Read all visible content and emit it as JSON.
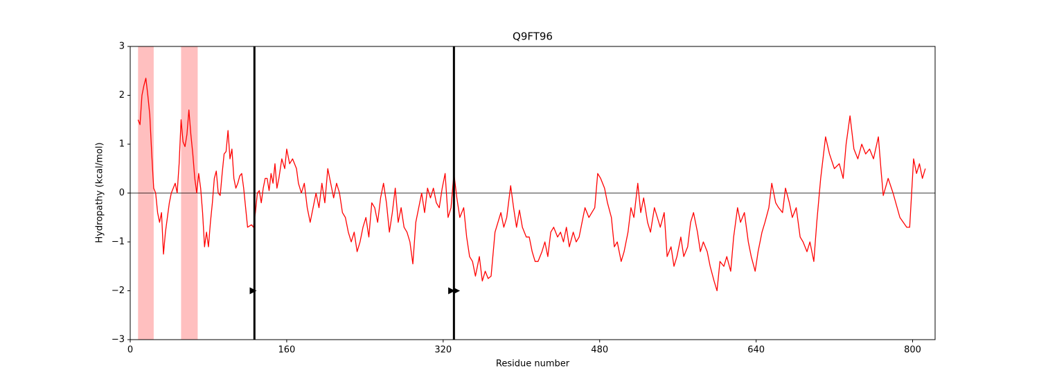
{
  "chart_data": {
    "type": "line",
    "title": "Q9FT96",
    "xlabel": "Residue number",
    "ylabel": "Hydropathy (kcal/mol)",
    "xlim": [
      0,
      823
    ],
    "ylim": [
      -3,
      3
    ],
    "xticks": [
      0,
      160,
      320,
      480,
      640,
      800
    ],
    "yticks": [
      {
        "value": -3,
        "label": "−3"
      },
      {
        "value": -2,
        "label": "−2"
      },
      {
        "value": -1,
        "label": "−1"
      },
      0,
      1,
      2,
      3
    ],
    "hline": 0,
    "spans": [
      [
        8,
        24
      ],
      [
        52,
        69
      ]
    ],
    "span_color": "#ffbfbf",
    "vlines": [
      127,
      331
    ],
    "markers": {
      "x": [
        125,
        328,
        333
      ],
      "y": [
        -2,
        -2,
        -2
      ]
    },
    "x": [
      8,
      10,
      12,
      14,
      16,
      18,
      20,
      22,
      24,
      26,
      28,
      30,
      32,
      34,
      36,
      38,
      40,
      42,
      44,
      46,
      48,
      50,
      52,
      54,
      56,
      58,
      60,
      62,
      64,
      66,
      68,
      70,
      72,
      74,
      76,
      78,
      80,
      82,
      84,
      86,
      88,
      90,
      92,
      94,
      96,
      98,
      100,
      102,
      104,
      106,
      108,
      110,
      112,
      114,
      116,
      118,
      120,
      124,
      126,
      128,
      130,
      132,
      134,
      136,
      138,
      140,
      142,
      144,
      146,
      148,
      150,
      152,
      155,
      158,
      160,
      163,
      166,
      170,
      172,
      175,
      178,
      181,
      184,
      187,
      190,
      193,
      196,
      199,
      202,
      205,
      208,
      211,
      214,
      217,
      220,
      223,
      226,
      229,
      232,
      235,
      238,
      241,
      244,
      247,
      250,
      253,
      256,
      259,
      262,
      265,
      268,
      271,
      274,
      277,
      280,
      283,
      286,
      289,
      292,
      295,
      298,
      301,
      304,
      307,
      310,
      313,
      316,
      319,
      322,
      325,
      328,
      331,
      334,
      337,
      341,
      344,
      347,
      350,
      353,
      357,
      360,
      363,
      366,
      369,
      373,
      376,
      379,
      382,
      385,
      389,
      392,
      395,
      398,
      401,
      405,
      408,
      411,
      414,
      417,
      421,
      424,
      427,
      430,
      433,
      437,
      440,
      443,
      446,
      449,
      453,
      456,
      459,
      462,
      465,
      469,
      472,
      475,
      478,
      481,
      485,
      488,
      492,
      495,
      498,
      502,
      505,
      509,
      512,
      515,
      519,
      522,
      525,
      529,
      532,
      536,
      539,
      542,
      546,
      549,
      553,
      556,
      559,
      563,
      566,
      570,
      573,
      576,
      580,
      583,
      586,
      590,
      593,
      597,
      600,
      603,
      607,
      610,
      614,
      617,
      621,
      624,
      628,
      632,
      635,
      639,
      642,
      646,
      649,
      653,
      656,
      660,
      663,
      667,
      670,
      674,
      677,
      681,
      685,
      688,
      692,
      695,
      699,
      702,
      706,
      711,
      715,
      720,
      725,
      729,
      732,
      736,
      740,
      744,
      748,
      752,
      756,
      760,
      765,
      768,
      770,
      775,
      780,
      787,
      794,
      797,
      799,
      801,
      804,
      807,
      810,
      813
    ],
    "series": [
      {
        "name": "Hydropathy",
        "color": "#ff0000",
        "values": [
          1.5,
          1.4,
          2.0,
          2.2,
          2.35,
          2.0,
          1.6,
          0.8,
          0.1,
          0.0,
          -0.4,
          -0.6,
          -0.4,
          -1.25,
          -0.8,
          -0.5,
          -0.2,
          0.0,
          0.1,
          0.2,
          0.0,
          0.6,
          1.5,
          1.05,
          0.95,
          1.2,
          1.7,
          1.2,
          0.8,
          0.3,
          0.0,
          0.4,
          0.1,
          -0.4,
          -1.1,
          -0.8,
          -1.1,
          -0.6,
          -0.2,
          0.3,
          0.45,
          0.0,
          -0.05,
          0.4,
          0.8,
          0.85,
          1.28,
          0.7,
          0.9,
          0.3,
          0.1,
          0.2,
          0.35,
          0.4,
          0.1,
          -0.3,
          -0.7,
          -0.65,
          -0.7,
          -0.4,
          0.0,
          0.05,
          -0.2,
          0.1,
          0.3,
          0.3,
          0.05,
          0.4,
          0.2,
          0.6,
          0.1,
          0.3,
          0.7,
          0.5,
          0.9,
          0.6,
          0.7,
          0.5,
          0.2,
          0.0,
          0.2,
          -0.3,
          -0.6,
          -0.3,
          0.0,
          -0.3,
          0.2,
          -0.2,
          0.5,
          0.2,
          -0.1,
          0.2,
          0.0,
          -0.4,
          -0.5,
          -0.8,
          -1.0,
          -0.8,
          -1.2,
          -1.0,
          -0.7,
          -0.5,
          -0.9,
          -0.2,
          -0.3,
          -0.6,
          -0.1,
          0.2,
          -0.2,
          -0.8,
          -0.4,
          0.1,
          -0.6,
          -0.3,
          -0.7,
          -0.8,
          -1.0,
          -1.45,
          -0.6,
          -0.3,
          0.0,
          -0.4,
          0.1,
          -0.1,
          0.1,
          -0.2,
          -0.3,
          0.1,
          0.4,
          -0.5,
          -0.3,
          0.4,
          -0.1,
          -0.5,
          -0.3,
          -0.9,
          -1.3,
          -1.4,
          -1.7,
          -1.3,
          -1.8,
          -1.6,
          -1.75,
          -1.7,
          -0.8,
          -0.6,
          -0.4,
          -0.7,
          -0.5,
          0.15,
          -0.3,
          -0.7,
          -0.35,
          -0.7,
          -0.9,
          -0.9,
          -1.2,
          -1.4,
          -1.4,
          -1.2,
          -1.0,
          -1.3,
          -0.8,
          -0.7,
          -0.9,
          -0.8,
          -1.0,
          -0.7,
          -1.1,
          -0.8,
          -1.0,
          -0.9,
          -0.6,
          -0.3,
          -0.5,
          -0.4,
          -0.3,
          0.4,
          0.3,
          0.1,
          -0.2,
          -0.5,
          -1.1,
          -1.0,
          -1.4,
          -1.2,
          -0.8,
          -0.3,
          -0.5,
          0.2,
          -0.4,
          -0.1,
          -0.6,
          -0.8,
          -0.3,
          -0.5,
          -0.7,
          -0.4,
          -1.3,
          -1.1,
          -1.5,
          -1.3,
          -0.9,
          -1.3,
          -1.1,
          -0.6,
          -0.4,
          -0.8,
          -1.2,
          -1.0,
          -1.2,
          -1.5,
          -1.8,
          -2.0,
          -1.4,
          -1.5,
          -1.3,
          -1.6,
          -0.9,
          -0.3,
          -0.6,
          -0.4,
          -1.0,
          -1.3,
          -1.6,
          -1.2,
          -0.8,
          -0.6,
          -0.3,
          0.2,
          -0.2,
          -0.3,
          -0.4,
          0.1,
          -0.2,
          -0.5,
          -0.3,
          -0.9,
          -1.0,
          -1.2,
          -1.0,
          -1.4,
          -0.6,
          0.3,
          1.15,
          0.8,
          0.5,
          0.6,
          0.3,
          1.0,
          1.58,
          0.9,
          0.7,
          1.0,
          0.8,
          0.9,
          0.7,
          1.15,
          0.4,
          -0.05,
          0.3,
          0.0,
          -0.5,
          -0.7,
          -0.7,
          0.0,
          0.7,
          0.4,
          0.6,
          0.3,
          0.5
        ]
      }
    ]
  }
}
